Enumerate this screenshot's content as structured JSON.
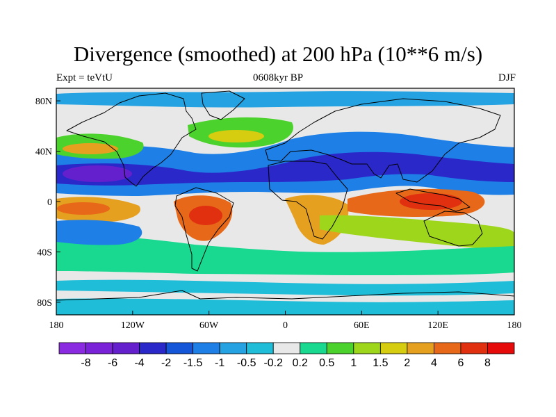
{
  "title": "Divergence (smoothed) at 200 hPa (10**6 m/s)",
  "subtitle_left": "Expt = teVtU",
  "subtitle_center": "0608kyr BP",
  "subtitle_right": "DJF",
  "map": {
    "projection": "cylindrical equidistant",
    "lon_range": [
      -180,
      180
    ],
    "lat_range": [
      -90,
      90
    ],
    "coastlines": true,
    "field": "200 hPa divergence, DJF",
    "land_outline_color": "#000000"
  },
  "axes": {
    "y_ticks": [
      {
        "lat": 80,
        "label": "80N"
      },
      {
        "lat": 40,
        "label": "40N"
      },
      {
        "lat": 0,
        "label": "0"
      },
      {
        "lat": -40,
        "label": "40S"
      },
      {
        "lat": -80,
        "label": "80S"
      }
    ],
    "x_ticks": [
      {
        "lon": -180,
        "label": "180"
      },
      {
        "lon": -120,
        "label": "120W"
      },
      {
        "lon": -60,
        "label": "60W"
      },
      {
        "lon": 0,
        "label": "0"
      },
      {
        "lon": 60,
        "label": "60E"
      },
      {
        "lon": 120,
        "label": "120E"
      },
      {
        "lon": 180,
        "label": "180"
      }
    ]
  },
  "colorbar": {
    "colors": [
      "#8a2be2",
      "#7a22d8",
      "#6420cc",
      "#2a28c8",
      "#1555d8",
      "#1e80e6",
      "#25a2e2",
      "#1fbdd8",
      "#e8e8e8",
      "#19d890",
      "#4cd22c",
      "#9ed61c",
      "#d6cc10",
      "#e6a020",
      "#e66818",
      "#e03010",
      "#e60a0a"
    ],
    "labels": [
      "-8",
      "-6",
      "-4",
      "-2",
      "-1.5",
      "-1",
      "-0.5",
      "-0.2",
      "0.2",
      "0.5",
      "1",
      "1.5",
      "2",
      "4",
      "6",
      "8"
    ]
  },
  "regions": [
    {
      "name": "background-neutral",
      "level": 0.0,
      "fill": "#e8e8e8"
    },
    {
      "name": "nh-subtropical-convergence",
      "level": -0.8,
      "fill": "#1e80e6"
    },
    {
      "name": "nh-subtropical-core",
      "level": -2.5,
      "fill": "#2a28c8"
    },
    {
      "name": "pacific-nh-core",
      "level": -4.5,
      "fill": "#6420cc"
    },
    {
      "name": "north-pacific-storm-track",
      "level": 1.0,
      "fill": "#4cd22c"
    },
    {
      "name": "north-pacific-core",
      "level": 2.5,
      "fill": "#e6a020"
    },
    {
      "name": "north-atlantic-storm-track",
      "level": 1.0,
      "fill": "#4cd22c"
    },
    {
      "name": "north-atlantic-core",
      "level": 2.0,
      "fill": "#d6cc10"
    },
    {
      "name": "equatorial-pacific-divergence",
      "level": 3.0,
      "fill": "#e6a020"
    },
    {
      "name": "equatorial-pacific-core",
      "level": 5.0,
      "fill": "#e66818"
    },
    {
      "name": "south-america-divergence",
      "level": 4.0,
      "fill": "#e66818"
    },
    {
      "name": "south-america-core",
      "level": 6.5,
      "fill": "#e03010"
    },
    {
      "name": "africa-divergence",
      "level": 3.5,
      "fill": "#e6a020"
    },
    {
      "name": "maritime-continent-divergence",
      "level": 4.0,
      "fill": "#e66818"
    },
    {
      "name": "maritime-continent-core",
      "level": 7.0,
      "fill": "#e03010"
    },
    {
      "name": "indo-pacific-broad",
      "level": 1.5,
      "fill": "#9ed61c"
    },
    {
      "name": "southern-midlatitude-band",
      "level": 0.7,
      "fill": "#19d890"
    },
    {
      "name": "southern-subtropical-convergence",
      "level": -1.0,
      "fill": "#1e80e6"
    },
    {
      "name": "southern-ocean-band",
      "level": -0.3,
      "fill": "#1fbdd8"
    },
    {
      "name": "antarctic-band",
      "level": -0.3,
      "fill": "#1fbdd8"
    },
    {
      "name": "arctic-convergence",
      "level": -0.4,
      "fill": "#25a2e2"
    }
  ]
}
